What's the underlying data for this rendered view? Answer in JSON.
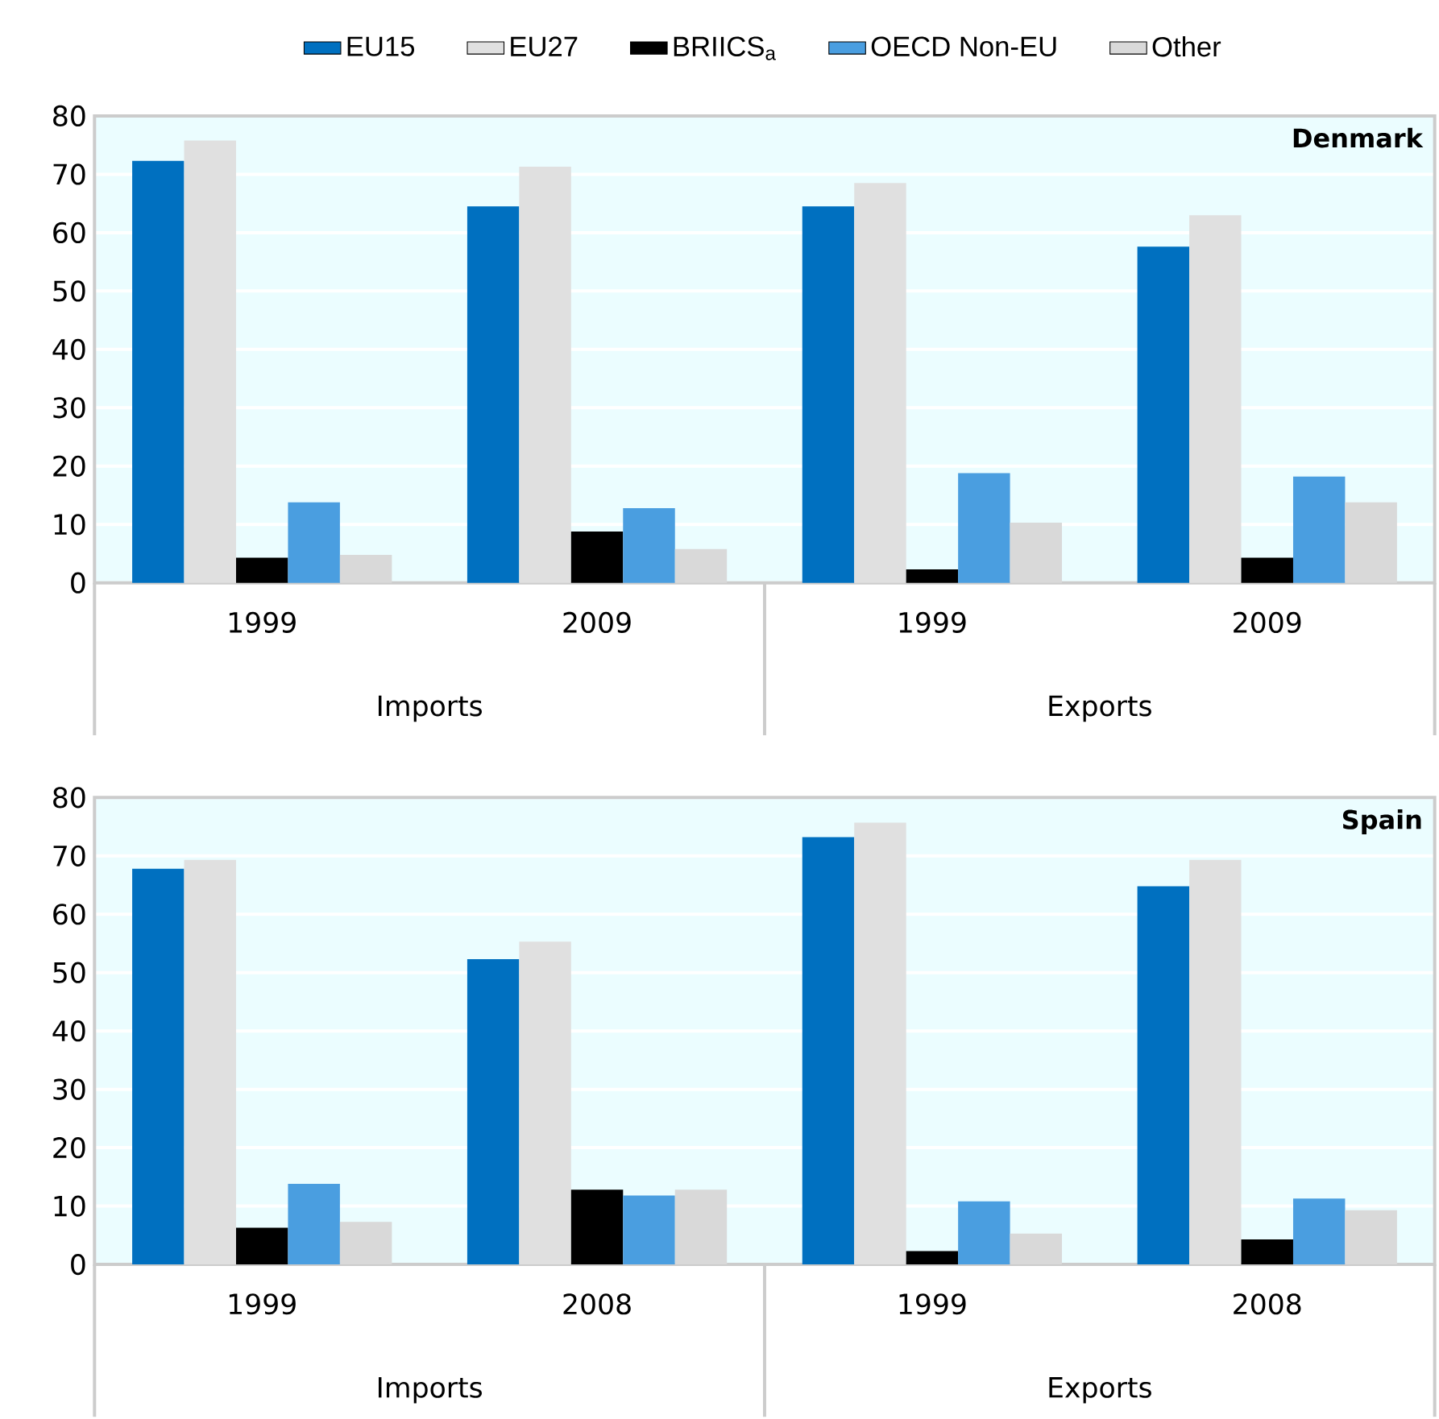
{
  "chart_data": [
    {
      "type": "bar",
      "title": "Denmark",
      "categories": [
        "1999",
        "2009",
        "1999",
        "2009"
      ],
      "ylim": [
        0,
        80
      ],
      "yticks": [
        0,
        10,
        20,
        30,
        40,
        50,
        60,
        70,
        80
      ],
      "grid": "y",
      "legend": "top",
      "annotations": [
        "Imports",
        "Exports"
      ],
      "series": [
        {
          "name": "EU15",
          "color": "#0070c0",
          "values": [
            72.3,
            64.5,
            64.5,
            57.6
          ]
        },
        {
          "name": "EU27",
          "color": "#e0e0e0",
          "values": [
            75.8,
            71.3,
            68.5,
            63
          ]
        },
        {
          "name": "BRIICS$_{a}$",
          "color": "#000000",
          "values": [
            4.3,
            8.8,
            2.3,
            4.3
          ]
        },
        {
          "name": "OECD Non-EU",
          "color": "#4a9ee0",
          "values": [
            13.8,
            12.8,
            18.8,
            18.2
          ]
        },
        {
          "name": "Other",
          "color": "#d9d9d9",
          "values": [
            4.8,
            5.8,
            10.3,
            13.8
          ]
        }
      ]
    },
    {
      "type": "bar",
      "title": "Spain",
      "categories": [
        "1999",
        "2008",
        "1999",
        "2008"
      ],
      "ylim": [
        0,
        80
      ],
      "yticks": [
        0,
        10,
        20,
        30,
        40,
        50,
        60,
        70,
        80
      ],
      "grid": "y",
      "annotations": [
        "Imports",
        "Exports"
      ],
      "series": [
        {
          "color": "#0070c0",
          "values": [
            67.8,
            52.3,
            73.2,
            64.8
          ]
        },
        {
          "color": "#e0e0e0",
          "values": [
            69.3,
            55.3,
            75.7,
            69.3
          ]
        },
        {
          "color": "#000000",
          "values": [
            6.3,
            12.8,
            2.3,
            4.3
          ]
        },
        {
          "color": "#4a9ee0",
          "values": [
            13.8,
            11.8,
            10.8,
            11.3
          ]
        },
        {
          "color": "#d9d9d9",
          "values": [
            7.3,
            12.8,
            5.3,
            9.3
          ]
        }
      ]
    }
  ]
}
